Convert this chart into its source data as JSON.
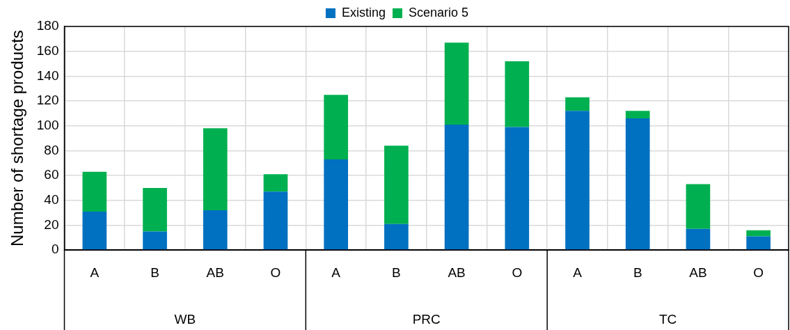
{
  "chart_data": {
    "type": "bar",
    "stacked": true,
    "ylabel": "Number of shortage products",
    "categories": [
      "A",
      "B",
      "AB",
      "O",
      "A",
      "B",
      "AB",
      "O",
      "A",
      "B",
      "AB",
      "O"
    ],
    "series": [
      {
        "name": "Existing",
        "color": "#0070c0",
        "values": [
          31,
          15,
          32,
          47,
          73,
          21,
          101,
          99,
          112,
          106,
          17,
          11
        ]
      },
      {
        "name": "Scenario 5",
        "color": "#00b050",
        "values": [
          32,
          35,
          66,
          14,
          52,
          63,
          66,
          53,
          11,
          6,
          36,
          5
        ]
      }
    ],
    "ylim": [
      0,
      180
    ],
    "yticks": [
      0,
      20,
      40,
      60,
      80,
      100,
      120,
      140,
      160,
      180
    ],
    "grid": true,
    "legend": "top",
    "annotations": [
      "WB",
      "PRC",
      "TC"
    ]
  }
}
